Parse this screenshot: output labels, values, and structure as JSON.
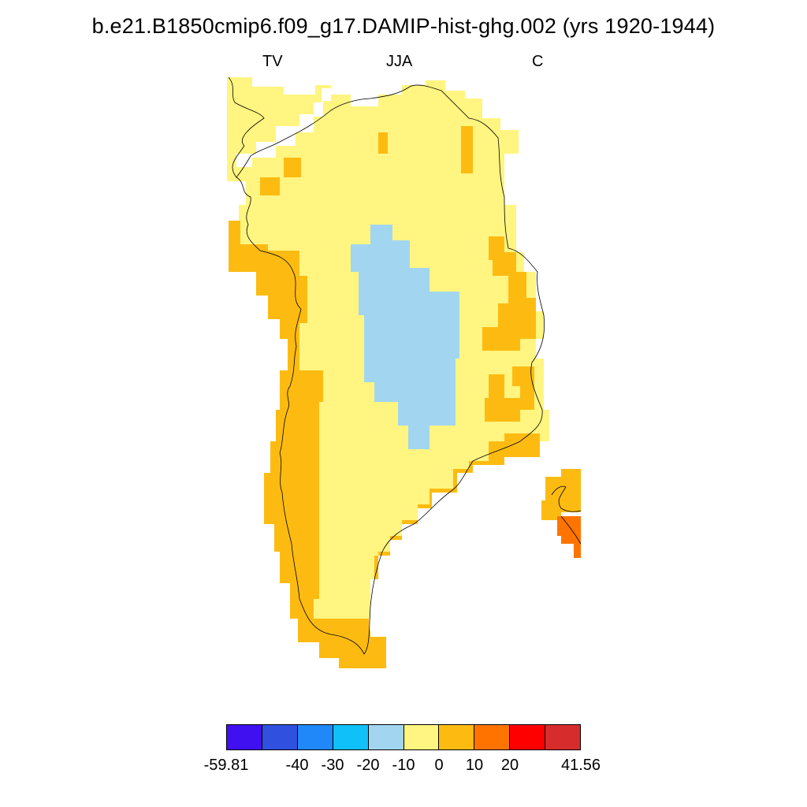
{
  "title": "b.e21.B1850cmip6.f09_g17.DAMIP-hist-ghg.002 (yrs 1920-1944)",
  "subtitles": {
    "left": "TV",
    "center": "JJA",
    "right": "C"
  },
  "colors": {
    "light_yellow": "#FFF580",
    "orange_yellow": "#FDBB12",
    "orange": "#FF7400",
    "light_blue": "#A2D6F0",
    "background": "#FFFFFF"
  },
  "colorbar": {
    "colors": [
      "#4010F0",
      "#3050E0",
      "#2088F8",
      "#10C0F8",
      "#A2D6F0",
      "#FFF580",
      "#FDBB12",
      "#FF7400",
      "#FF0000",
      "#D72C2C"
    ],
    "labels": [
      "-59.81",
      "-40",
      "-30",
      "-20",
      "-10",
      "0",
      "10",
      "20",
      "41.56"
    ],
    "min": -59.81,
    "max": 41.56
  }
}
